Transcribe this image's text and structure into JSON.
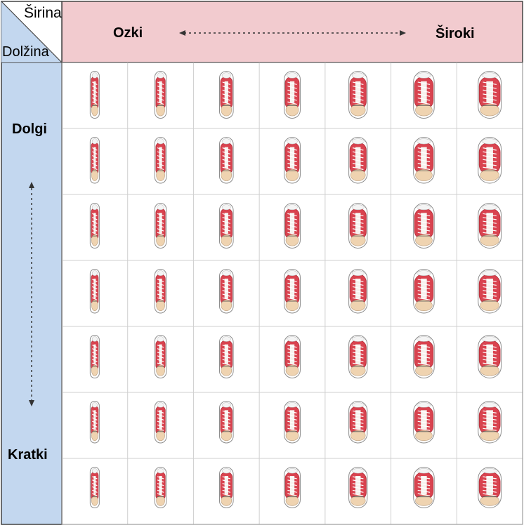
{
  "corner": {
    "top_label": "Širina",
    "bottom_label": "Dolžina"
  },
  "header": {
    "left_label": "Ozki",
    "right_label": "Široki"
  },
  "side": {
    "top_label": "Dolgi",
    "bottom_label": "Kratki"
  },
  "grid": {
    "rows": 7,
    "columns": 7
  },
  "colors": {
    "header_bg": "#f2cbcf",
    "side_bg": "#c3d7ef",
    "shoe_red": "#d9434f",
    "shoe_dark": "#b02f3a",
    "sole_tan": "#efd3b0",
    "lace": "#ffffff",
    "grid_line": "#cfcfcf"
  }
}
